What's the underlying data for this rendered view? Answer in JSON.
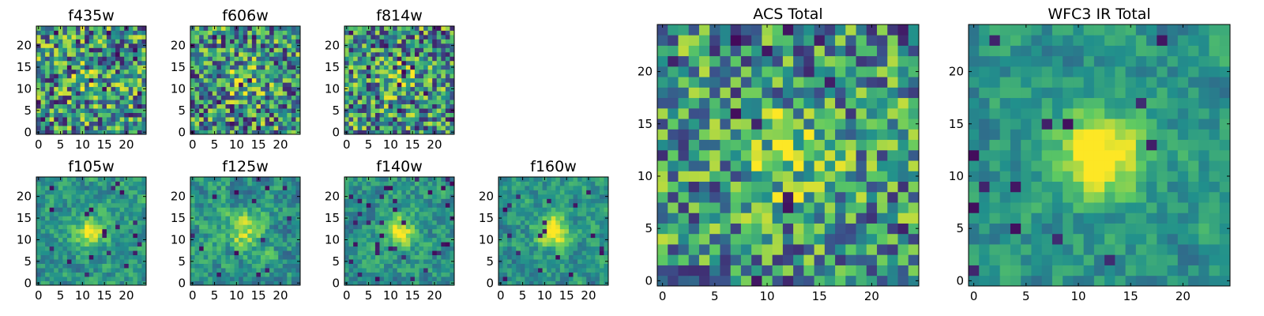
{
  "chart_data": [
    {
      "type": "heatmap",
      "title": "f435w",
      "size": 25,
      "seed": 11,
      "blob": 0.12,
      "sigma": 3.0,
      "noise": 0.62,
      "dark": 0.05,
      "xticks": [
        "0",
        "5",
        "10",
        "15",
        "20"
      ],
      "yticks": [
        "0",
        "5",
        "10",
        "15",
        "20"
      ],
      "xlim": [
        0,
        24
      ],
      "ylim": [
        0,
        24
      ]
    },
    {
      "type": "heatmap",
      "title": "f606w",
      "size": 25,
      "seed": 23,
      "blob": 0.3,
      "sigma": 2.5,
      "noise": 0.6,
      "dark": 0.04,
      "xticks": [
        "0",
        "5",
        "10",
        "15",
        "20"
      ],
      "yticks": [
        "0",
        "5",
        "10",
        "15",
        "20"
      ],
      "xlim": [
        0,
        24
      ],
      "ylim": [
        0,
        24
      ]
    },
    {
      "type": "heatmap",
      "title": "f814w",
      "size": 25,
      "seed": 37,
      "blob": 0.28,
      "sigma": 2.5,
      "noise": 0.6,
      "dark": 0.06,
      "xticks": [
        "0",
        "5",
        "10",
        "15",
        "20"
      ],
      "yticks": [
        "0",
        "5",
        "10",
        "15",
        "20"
      ],
      "xlim": [
        0,
        24
      ],
      "ylim": [
        0,
        24
      ]
    },
    {
      "type": "heatmap",
      "title": "f105w",
      "size": 25,
      "seed": 41,
      "blob": 0.45,
      "sigma": 2.6,
      "noise": 0.4,
      "dark": 0.03,
      "smooth": true,
      "xticks": [
        "0",
        "5",
        "10",
        "15",
        "20"
      ],
      "yticks": [
        "0",
        "5",
        "10",
        "15",
        "20"
      ],
      "xlim": [
        0,
        24
      ],
      "ylim": [
        0,
        24
      ]
    },
    {
      "type": "heatmap",
      "title": "f125w",
      "size": 25,
      "seed": 53,
      "blob": 0.35,
      "sigma": 3.0,
      "noise": 0.45,
      "dark": 0.03,
      "smooth": true,
      "xticks": [
        "0",
        "5",
        "10",
        "15",
        "20"
      ],
      "yticks": [
        "0",
        "5",
        "10",
        "15",
        "20"
      ],
      "xlim": [
        0,
        24
      ],
      "ylim": [
        0,
        24
      ]
    },
    {
      "type": "heatmap",
      "title": "f140w",
      "size": 25,
      "seed": 67,
      "blob": 0.45,
      "sigma": 2.6,
      "noise": 0.4,
      "dark": 0.04,
      "smooth": true,
      "xticks": [
        "0",
        "5",
        "10",
        "15",
        "20"
      ],
      "yticks": [
        "0",
        "5",
        "10",
        "15",
        "20"
      ],
      "xlim": [
        0,
        24
      ],
      "ylim": [
        0,
        24
      ]
    },
    {
      "type": "heatmap",
      "title": "f160w",
      "size": 25,
      "seed": 79,
      "blob": 0.55,
      "sigma": 2.6,
      "noise": 0.38,
      "dark": 0.04,
      "smooth": true,
      "xticks": [
        "0",
        "5",
        "10",
        "15",
        "20"
      ],
      "yticks": [
        "0",
        "5",
        "10",
        "15",
        "20"
      ],
      "xlim": [
        0,
        24
      ],
      "ylim": [
        0,
        24
      ]
    },
    {
      "type": "heatmap",
      "title": "ACS Total",
      "size": 25,
      "seed": 97,
      "blob": 0.3,
      "sigma": 3.0,
      "noise": 0.55,
      "dark": 0.03,
      "xticks": [
        "0",
        "5",
        "10",
        "15",
        "20"
      ],
      "yticks": [
        "0",
        "5",
        "10",
        "15",
        "20"
      ],
      "xlim": [
        0,
        24
      ],
      "ylim": [
        0,
        24
      ]
    },
    {
      "type": "heatmap",
      "title": "WFC3 IR Total",
      "size": 25,
      "seed": 113,
      "blob": 0.6,
      "sigma": 2.8,
      "noise": 0.35,
      "dark": 0.03,
      "smooth": true,
      "xticks": [
        "0",
        "5",
        "10",
        "15",
        "20"
      ],
      "yticks": [
        "0",
        "5",
        "10",
        "15",
        "20"
      ],
      "xlim": [
        0,
        24
      ],
      "ylim": [
        0,
        24
      ]
    }
  ],
  "colormap": [
    "#440154",
    "#3b528b",
    "#21908c",
    "#5dc963",
    "#fde725"
  ]
}
